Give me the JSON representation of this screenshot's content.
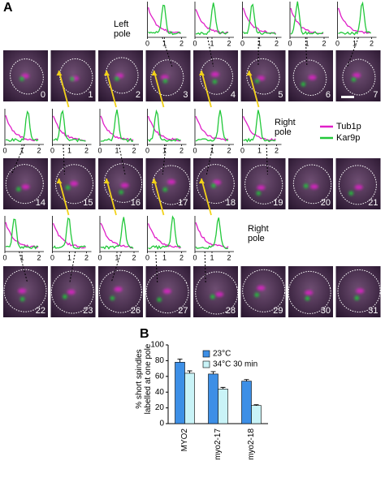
{
  "panel_a": {
    "label": "A",
    "left_pole": "Left pole",
    "right_poles": [
      "Right pole",
      "Right pole"
    ],
    "plot_ticks": [
      0,
      1,
      2
    ],
    "legend": [
      {
        "name": "Tub1p",
        "color": "#e020c8"
      },
      {
        "name": "Kar9p",
        "color": "#22c83a"
      }
    ],
    "frames": [
      [
        0,
        1,
        2,
        3,
        4,
        5,
        6,
        7
      ],
      [
        14,
        15,
        16,
        17,
        18,
        19,
        20,
        21
      ],
      [
        22,
        23,
        26,
        27,
        28,
        29,
        30,
        31
      ]
    ]
  },
  "panel_b": {
    "label": "B"
  },
  "chart_data": {
    "type": "bar",
    "ylabel": "% short spindles labelled at one pole",
    "categories": [
      "MYO2",
      "myo2-17",
      "myo2-18"
    ],
    "series": [
      {
        "name": "23°C",
        "color": "#3d8fe6",
        "values": [
          78,
          63,
          54
        ],
        "errors": [
          4,
          3,
          2
        ]
      },
      {
        "name": "34°C 30 min",
        "color": "#c9f3f7",
        "values": [
          64,
          44,
          23
        ],
        "errors": [
          3,
          2,
          1
        ]
      }
    ],
    "ylim": [
      0,
      100
    ],
    "yticks": [
      0,
      20,
      40,
      60,
      80,
      100
    ]
  }
}
